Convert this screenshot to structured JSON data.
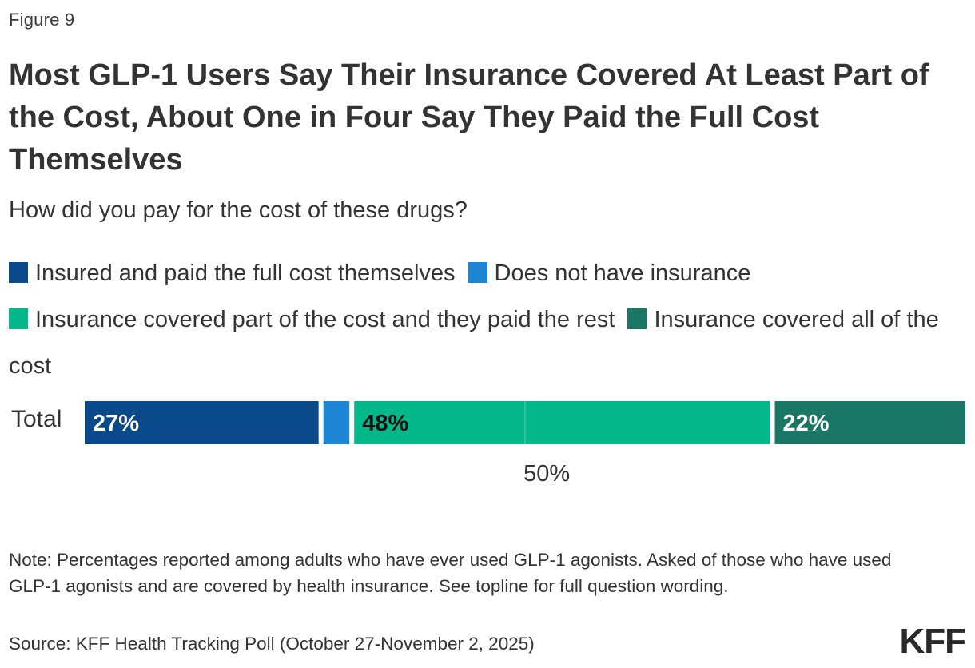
{
  "figure_label": "Figure 9",
  "colors": {
    "insured_paid_full": "#0b4a8a",
    "no_insurance": "#1f86d6",
    "insurance_partial": "#05b88a",
    "insurance_all": "#1a7766"
  },
  "chart_data": {
    "type": "bar",
    "orientation": "horizontal",
    "stacked": true,
    "title": "Most GLP-1 Users Say Their Insurance Covered At Least Part of the Cost, About One in Four Say They Paid the Full Cost Themselves",
    "subtitle": "How did you pay for the cost of these drugs?",
    "categories": [
      "Total"
    ],
    "xlim": [
      0,
      100
    ],
    "legend_position": "top",
    "series": [
      {
        "name": "Insured and paid the full cost themselves",
        "values": [
          27
        ],
        "label": "27%",
        "color": "#0b4a8a",
        "label_color": "#ffffff"
      },
      {
        "name": "Does not have insurance",
        "values": [
          3
        ],
        "label": "",
        "color": "#1f86d6",
        "label_color": "#ffffff"
      },
      {
        "name": "Insurance covered part of the cost and they paid the rest",
        "values": [
          48
        ],
        "label": "48%",
        "color": "#05b88a",
        "label_color": "#111111"
      },
      {
        "name": "Insurance covered all of the cost",
        "values": [
          22
        ],
        "label": "22%",
        "color": "#1a7766",
        "label_color": "#ffffff"
      }
    ],
    "bracket": {
      "label": "50%",
      "spans_series": [
        1,
        2
      ]
    }
  },
  "note": "Note: Percentages reported among adults who have ever used GLP-1 agonists. Asked of those who have used GLP-1 agonists and are covered by health insurance. See topline for full question wording.",
  "source": "Source: KFF Health Tracking Poll (October 27-November 2, 2025)",
  "logo_text": "KFF"
}
